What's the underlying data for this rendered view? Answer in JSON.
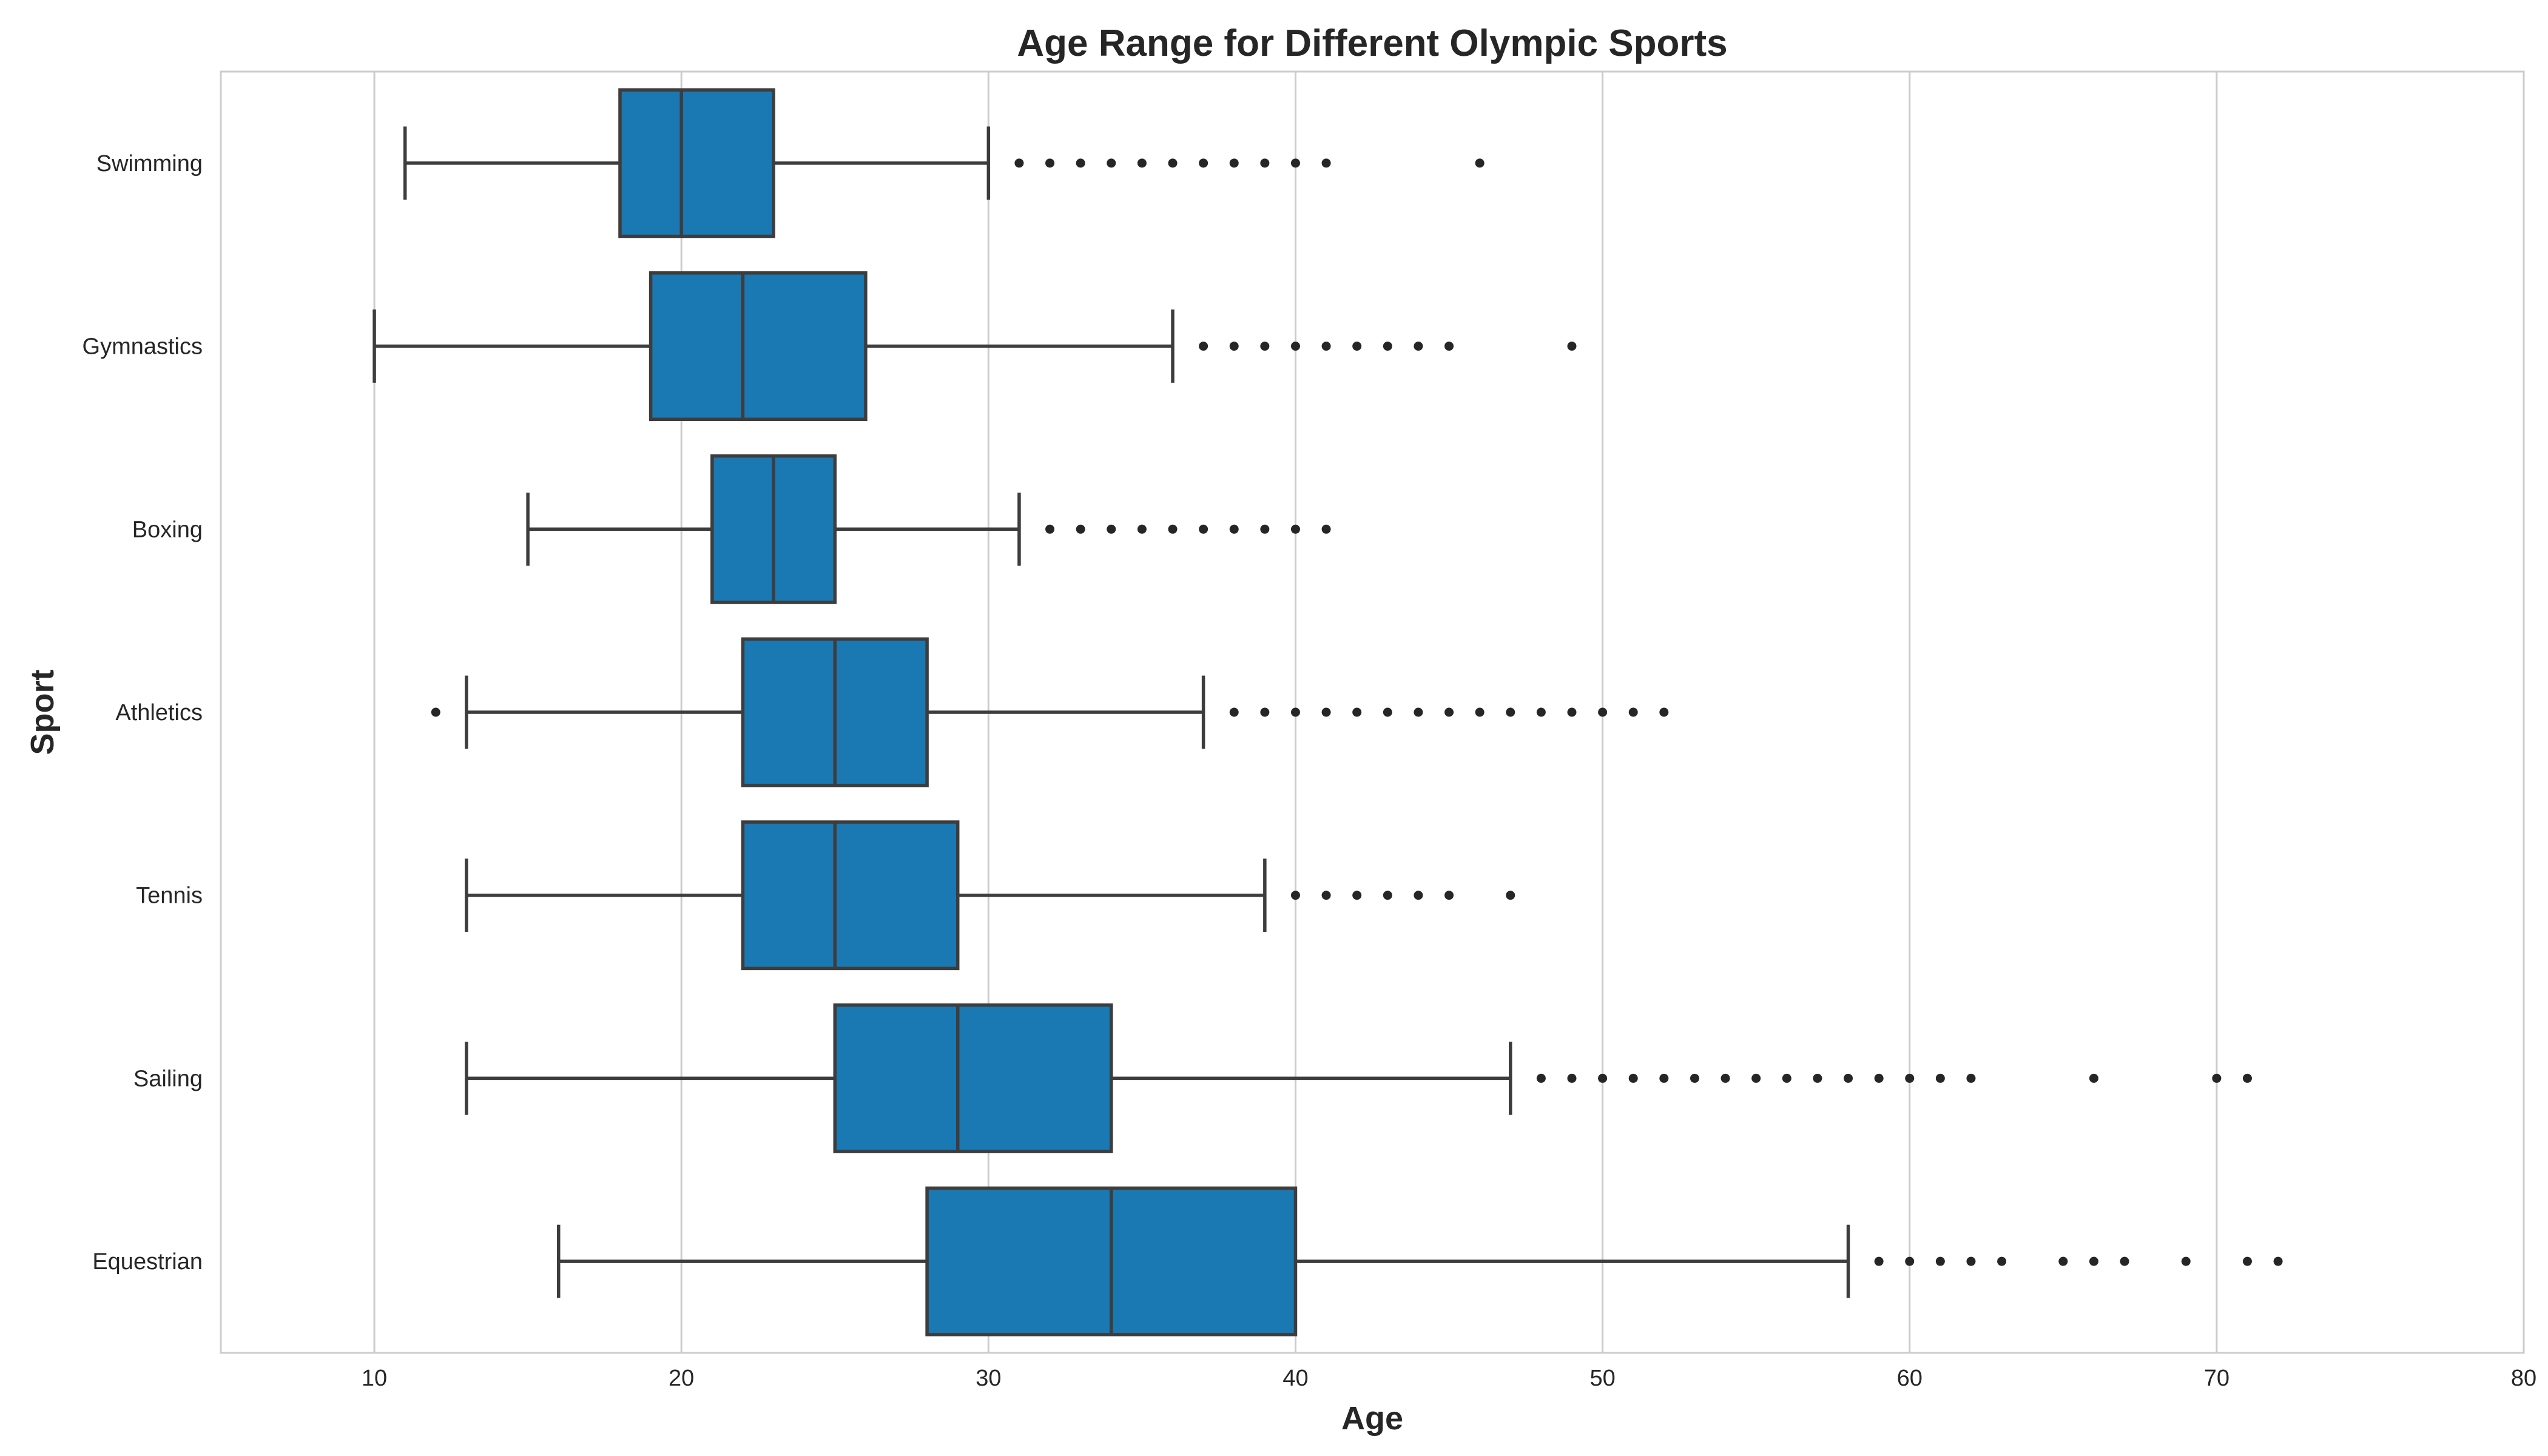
{
  "chart_data": {
    "type": "box",
    "orientation": "horizontal",
    "title": "Age Range for Different Olympic Sports",
    "xlabel": "Age",
    "ylabel": "Sport",
    "xlim": [
      5,
      80
    ],
    "xticks": [
      10,
      20,
      30,
      40,
      50,
      60,
      70,
      80
    ],
    "grid": "x",
    "categories": [
      "Swimming",
      "Gymnastics",
      "Boxing",
      "Athletics",
      "Tennis",
      "Sailing",
      "Equestrian"
    ],
    "color": "#1a78b2",
    "series": [
      {
        "category": "Swimming",
        "whisker_low": 11,
        "q1": 18,
        "median": 20,
        "q3": 23,
        "whisker_high": 30,
        "outliers": [
          31,
          32,
          33,
          34,
          35,
          36,
          37,
          38,
          39,
          40,
          41,
          46
        ]
      },
      {
        "category": "Gymnastics",
        "whisker_low": 10,
        "q1": 19,
        "median": 22,
        "q3": 26,
        "whisker_high": 36,
        "outliers": [
          37,
          38,
          39,
          40,
          41,
          42,
          43,
          44,
          45,
          49
        ]
      },
      {
        "category": "Boxing",
        "whisker_low": 15,
        "q1": 21,
        "median": 23,
        "q3": 25,
        "whisker_high": 31,
        "outliers": [
          32,
          33,
          34,
          35,
          36,
          37,
          38,
          39,
          40,
          41
        ]
      },
      {
        "category": "Athletics",
        "whisker_low": 13,
        "q1": 22,
        "median": 25,
        "q3": 28,
        "whisker_high": 37,
        "outliers": [
          12,
          38,
          39,
          40,
          41,
          42,
          43,
          44,
          45,
          46,
          47,
          48,
          49,
          50,
          51,
          52
        ]
      },
      {
        "category": "Tennis",
        "whisker_low": 13,
        "q1": 22,
        "median": 25,
        "q3": 29,
        "whisker_high": 39,
        "outliers": [
          40,
          41,
          42,
          43,
          44,
          45,
          47
        ]
      },
      {
        "category": "Sailing",
        "whisker_low": 13,
        "q1": 25,
        "median": 29,
        "q3": 34,
        "whisker_high": 47,
        "outliers": [
          48,
          49,
          50,
          51,
          52,
          53,
          54,
          55,
          56,
          57,
          58,
          59,
          60,
          61,
          62,
          66,
          70,
          71
        ]
      },
      {
        "category": "Equestrian",
        "whisker_low": 16,
        "q1": 28,
        "median": 34,
        "q3": 40,
        "whisker_high": 58,
        "outliers": [
          59,
          60,
          61,
          62,
          63,
          65,
          66,
          67,
          69,
          71,
          72
        ]
      }
    ]
  }
}
